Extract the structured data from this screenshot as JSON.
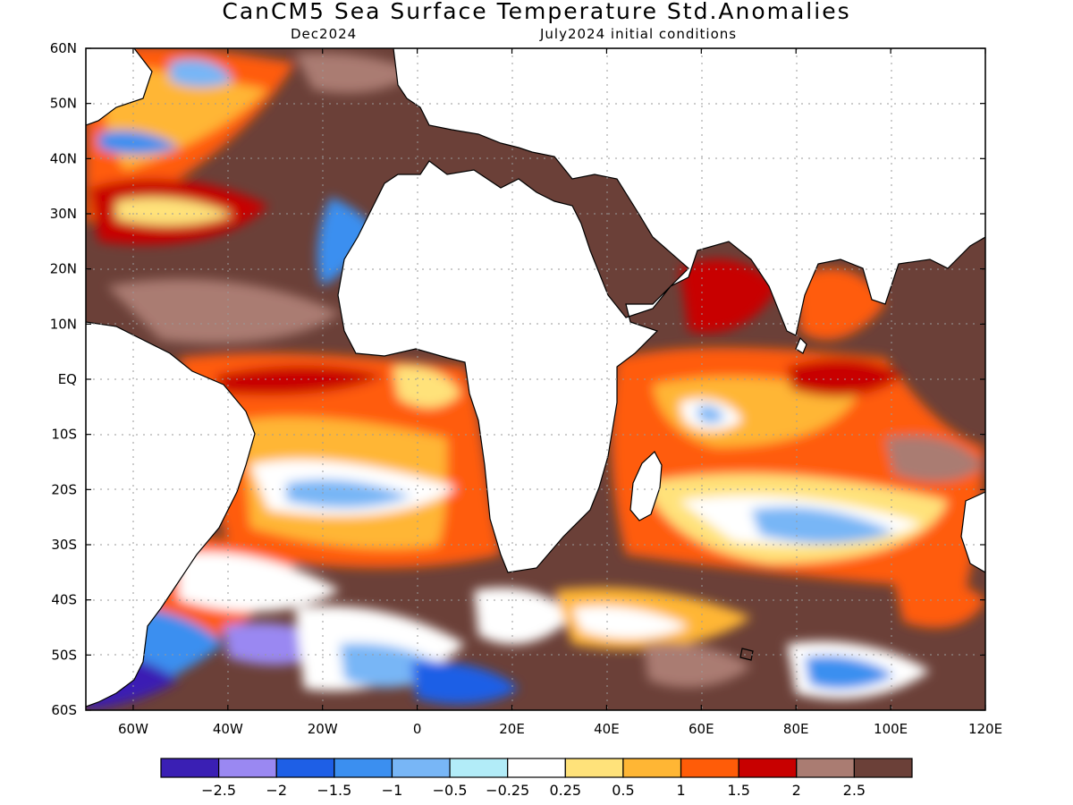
{
  "title": "CanCM5 Sea Surface Temperature Std.Anomalies",
  "subtitle_left": "Dec2024",
  "subtitle_right": "July2024 initial conditions",
  "map": {
    "lon_range": [
      -70,
      120
    ],
    "lat_range": [
      -60,
      60
    ],
    "lat_ticks": [
      {
        "value": 60,
        "label": "60N"
      },
      {
        "value": 50,
        "label": "50N"
      },
      {
        "value": 40,
        "label": "40N"
      },
      {
        "value": 30,
        "label": "30N"
      },
      {
        "value": 20,
        "label": "20N"
      },
      {
        "value": 10,
        "label": "10N"
      },
      {
        "value": 0,
        "label": "EQ"
      },
      {
        "value": -10,
        "label": "10S"
      },
      {
        "value": -20,
        "label": "20S"
      },
      {
        "value": -30,
        "label": "30S"
      },
      {
        "value": -40,
        "label": "40S"
      },
      {
        "value": -50,
        "label": "50S"
      },
      {
        "value": -60,
        "label": "60S"
      }
    ],
    "lon_ticks": [
      {
        "value": -60,
        "label": "60W"
      },
      {
        "value": -40,
        "label": "40W"
      },
      {
        "value": -20,
        "label": "20W"
      },
      {
        "value": 0,
        "label": "0"
      },
      {
        "value": 20,
        "label": "20E"
      },
      {
        "value": 40,
        "label": "40E"
      },
      {
        "value": 60,
        "label": "60E"
      },
      {
        "value": 80,
        "label": "80E"
      },
      {
        "value": 100,
        "label": "100E"
      },
      {
        "value": 120,
        "label": "120E"
      }
    ],
    "gridlines": true
  },
  "colorbar": {
    "colors": [
      "#3a1fb4",
      "#9a88f2",
      "#1e5fe6",
      "#3b8ff0",
      "#78b6f6",
      "#b2ecf8",
      "#ffffff",
      "#ffe27a",
      "#ffb634",
      "#ff5c08",
      "#c80000",
      "#aa7c72",
      "#6b4038"
    ],
    "labels": [
      "-2.5",
      "-2",
      "-1.5",
      "-1",
      "-0.5",
      "-0.25",
      "0.25",
      "0.5",
      "1",
      "1.5",
      "2",
      "2.5"
    ]
  }
}
